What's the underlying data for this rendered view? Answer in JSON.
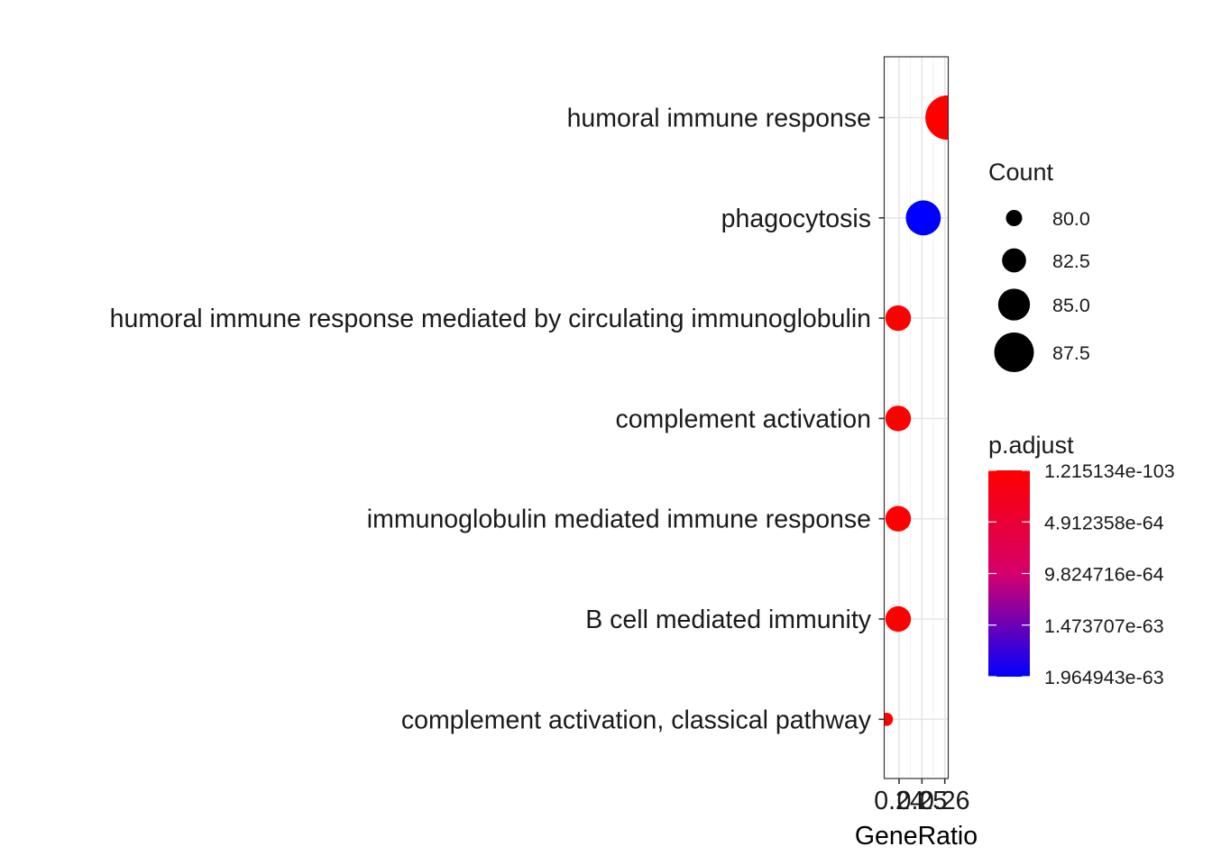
{
  "chart_data": {
    "type": "scatter",
    "title": "",
    "xlabel": "GeneRatio",
    "ylabel": "",
    "x_tick_labels": [
      "0.24",
      "0.25",
      "0.26"
    ],
    "x_tick_values": [
      0.24,
      0.25,
      0.26
    ],
    "xlim": [
      0.2335,
      0.2615
    ],
    "grid": true,
    "categories": [
      "humoral immune response",
      "phagocytosis",
      "humoral immune response mediated by circulating immunoglobulin",
      "complement activation",
      "immunoglobulin mediated immune response",
      "B cell mediated immunity",
      "complement activation, classical pathway"
    ],
    "points": [
      {
        "term": "humoral immune response",
        "gene_ratio": 0.2612,
        "count": 89,
        "p_adjust": 1.215134e-103,
        "color": "#ff0000"
      },
      {
        "term": "phagocytosis",
        "gene_ratio": 0.2506,
        "count": 86,
        "p_adjust": 1.964943e-63,
        "color": "#0000ff"
      },
      {
        "term": "humoral immune response mediated by circulating immunoglobulin",
        "gene_ratio": 0.2396,
        "count": 83,
        "p_adjust": 1.3e-80,
        "color": "#ff0000"
      },
      {
        "term": "complement activation",
        "gene_ratio": 0.2396,
        "count": 83,
        "p_adjust": 1.3e-80,
        "color": "#ff0000"
      },
      {
        "term": "immunoglobulin mediated immune response",
        "gene_ratio": 0.2396,
        "count": 83,
        "p_adjust": 1.3e-80,
        "color": "#ff0000"
      },
      {
        "term": "B cell mediated immunity",
        "gene_ratio": 0.2396,
        "count": 83,
        "p_adjust": 1.3e-80,
        "color": "#ff0000"
      },
      {
        "term": "complement activation, classical pathway",
        "gene_ratio": 0.2345,
        "count": 79,
        "p_adjust": 1e-78,
        "color": "#ff0000"
      }
    ],
    "legend_size": {
      "title": "Count",
      "entries": [
        {
          "label": "80.0",
          "value": 80.0
        },
        {
          "label": "82.5",
          "value": 82.5
        },
        {
          "label": "85.0",
          "value": 85.0
        },
        {
          "label": "87.5",
          "value": 87.5
        }
      ]
    },
    "legend_color": {
      "title": "p.adjust",
      "low_color": "#ff0000",
      "high_color": "#0000ff",
      "labels": [
        "1.215134e-103",
        "4.912358e-64",
        "9.824716e-64",
        "1.473707e-63",
        "1.964943e-63"
      ],
      "values": [
        1.215134e-103,
        4.912358e-64,
        9.824716e-64,
        1.473707e-63,
        1.964943e-63
      ]
    },
    "legend_placement": "right"
  }
}
